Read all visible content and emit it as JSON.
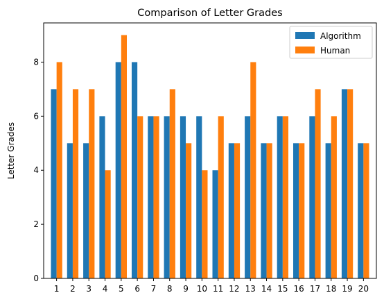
{
  "chart_data": {
    "type": "bar",
    "title": "Comparison of Letter Grades",
    "xlabel": "",
    "ylabel": "Letter Grades",
    "categories": [
      "1",
      "2",
      "3",
      "4",
      "5",
      "6",
      "7",
      "8",
      "9",
      "10",
      "11",
      "12",
      "13",
      "14",
      "15",
      "16",
      "17",
      "18",
      "19",
      "20"
    ],
    "series": [
      {
        "name": "Algorithm",
        "color": "#1f77b4",
        "values": [
          7,
          5,
          5,
          6,
          8,
          8,
          6,
          6,
          6,
          6,
          4,
          5,
          6,
          5,
          6,
          5,
          6,
          5,
          7,
          5
        ]
      },
      {
        "name": "Human",
        "color": "#ff7f0e",
        "values": [
          8,
          7,
          7,
          4,
          9,
          6,
          6,
          7,
          5,
          4,
          6,
          5,
          8,
          5,
          6,
          5,
          7,
          6,
          7,
          5
        ]
      }
    ],
    "ylim": [
      0,
      9.45
    ],
    "yticks": [
      0,
      2,
      4,
      6,
      8
    ],
    "grid": false,
    "legend_position": "top-right"
  }
}
